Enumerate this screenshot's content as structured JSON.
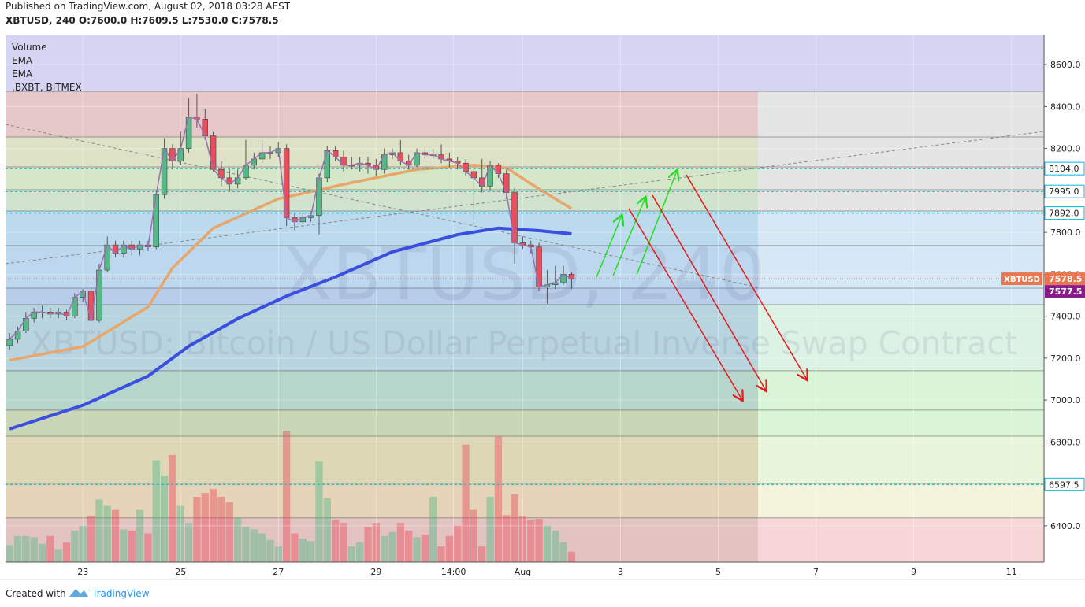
{
  "header": {
    "published": "Published on TradingView.com, August 02, 2018 03:28 AEST",
    "symbol": "XBTUSD, 240",
    "ohlc": [
      "O:7600.0",
      "H:7609.5",
      "L:7530.0",
      "C:7578.5"
    ]
  },
  "legend": [
    "Volume",
    "EMA",
    "EMA",
    ".BXBT, BITMEX"
  ],
  "watermark": {
    "symbol": "XBTUSD, 240",
    "description": "XBTUSD: Bitcoin / US Dollar Perpetual Inverse Swap Contract"
  },
  "footer": {
    "created": "Created with",
    "brand": "TradingView"
  },
  "chart_data": {
    "type": "candlestick",
    "xlim": [
      -38,
      472
    ],
    "xticks": [
      {
        "value": 0,
        "label": "23"
      },
      {
        "value": 48,
        "label": "25"
      },
      {
        "value": 96,
        "label": "27"
      },
      {
        "value": 144,
        "label": "29"
      },
      {
        "value": 182,
        "label": "14:00"
      },
      {
        "value": 216,
        "label": "Aug"
      },
      {
        "value": 264,
        "label": "3"
      },
      {
        "value": 312,
        "label": "5"
      },
      {
        "value": 360,
        "label": "7"
      },
      {
        "value": 408,
        "label": "9"
      },
      {
        "value": 456,
        "label": "11"
      }
    ],
    "ylim": [
      6227,
      8743
    ],
    "yticks": [
      {
        "value": 6400,
        "label": "6400.0"
      },
      {
        "value": 6600,
        "label": "6600.0"
      },
      {
        "value": 6800,
        "label": "6800.0"
      },
      {
        "value": 7000,
        "label": "7000.0"
      },
      {
        "value": 7200,
        "label": "7200.0"
      },
      {
        "value": 7400,
        "label": "7400.0"
      },
      {
        "value": 7600,
        "label": "7600.0"
      },
      {
        "value": 7800,
        "label": "7800.0"
      },
      {
        "value": 8000,
        "label": "8000.0"
      },
      {
        "value": 8200,
        "label": "8200.0"
      },
      {
        "value": 8400,
        "label": "8400.0"
      },
      {
        "value": 8600,
        "label": "8600.0"
      }
    ],
    "up_color": "#53b987",
    "down_color": "#eb4d5c",
    "close_line_color": "#9c6fb0",
    "x": [
      -36,
      -32,
      -28,
      -24,
      -20,
      -16,
      -12,
      -8,
      -4,
      0,
      4,
      8,
      12,
      16,
      20,
      24,
      28,
      32,
      36,
      40,
      44,
      48,
      52,
      56,
      60,
      64,
      68,
      72,
      76,
      80,
      84,
      88,
      92,
      96,
      100,
      104,
      108,
      112,
      116,
      120,
      124,
      128,
      132,
      136,
      140,
      144,
      148,
      152,
      156,
      160,
      164,
      168,
      172,
      176,
      180,
      184,
      188,
      192,
      196,
      200,
      204,
      208,
      212,
      216,
      220,
      224,
      228,
      232,
      236,
      240
    ],
    "open": [
      7260,
      7290,
      7330,
      7390,
      7420,
      7420,
      7410,
      7420,
      7400,
      7490,
      7520,
      7380,
      7620,
      7740,
      7700,
      7740,
      7720,
      7740,
      7730,
      7980,
      8200,
      8140,
      8200,
      8350,
      8340,
      8260,
      8100,
      8060,
      8030,
      8060,
      8120,
      8150,
      8180,
      8180,
      8200,
      7870,
      7850,
      7870,
      7880,
      8060,
      8190,
      8160,
      8120,
      8120,
      8130,
      8120,
      8100,
      8170,
      8180,
      8140,
      8120,
      8180,
      8170,
      8170,
      8150,
      8140,
      8130,
      8090,
      8060,
      8020,
      8120,
      8080,
      7990,
      7750,
      7740,
      7730,
      7540,
      7550,
      7560,
      7600
    ],
    "high": [
      7320,
      7350,
      7420,
      7440,
      7450,
      7440,
      7440,
      7430,
      7510,
      7530,
      7540,
      7650,
      7780,
      7760,
      7760,
      7760,
      7760,
      7760,
      8000,
      8250,
      8220,
      8280,
      8440,
      8460,
      8390,
      8280,
      8140,
      8100,
      8100,
      8240,
      8180,
      8240,
      8210,
      8230,
      8220,
      7890,
      7890,
      7900,
      8080,
      8210,
      8210,
      8190,
      8160,
      8160,
      8160,
      8150,
      8200,
      8200,
      8240,
      8170,
      8200,
      8210,
      8200,
      8220,
      8180,
      8160,
      8150,
      8110,
      8150,
      8140,
      8130,
      8100,
      8010,
      7780,
      7760,
      7750,
      7620,
      7640,
      7640,
      7609.5
    ],
    "low": [
      7240,
      7270,
      7320,
      7370,
      7390,
      7390,
      7390,
      7380,
      7390,
      7470,
      7330,
      7370,
      7610,
      7680,
      7680,
      7690,
      7690,
      7710,
      7720,
      7960,
      8100,
      8120,
      8180,
      8300,
      8240,
      8090,
      8020,
      8000,
      8010,
      8050,
      8100,
      8130,
      8150,
      8160,
      7830,
      7810,
      7840,
      7850,
      7790,
      8040,
      8140,
      8090,
      8100,
      8090,
      8080,
      8070,
      8080,
      8150,
      8120,
      8100,
      8110,
      8150,
      8150,
      8130,
      8110,
      8100,
      8070,
      7840,
      7990,
      8000,
      8060,
      7960,
      7650,
      7720,
      7700,
      7520,
      7460,
      7530,
      7550,
      7530
    ],
    "close": [
      7290,
      7330,
      7390,
      7420,
      7420,
      7410,
      7420,
      7400,
      7490,
      7520,
      7380,
      7620,
      7740,
      7700,
      7740,
      7720,
      7740,
      7730,
      7980,
      8200,
      8140,
      8200,
      8350,
      8340,
      8260,
      8100,
      8060,
      8030,
      8060,
      8120,
      8150,
      8180,
      8180,
      8200,
      7870,
      7850,
      7870,
      7880,
      8060,
      8190,
      8160,
      8120,
      8120,
      8130,
      8120,
      8100,
      8170,
      8180,
      8140,
      8120,
      8180,
      8170,
      8170,
      8150,
      8140,
      8130,
      8090,
      8060,
      8020,
      8120,
      8080,
      7990,
      7750,
      7740,
      7730,
      7540,
      7550,
      7560,
      7600,
      7578.5
    ],
    "volume": [
      13,
      20,
      20,
      19,
      14,
      20,
      10,
      15,
      24,
      28,
      35,
      48,
      43,
      40,
      25,
      24,
      40,
      22,
      78,
      66,
      82,
      43,
      30,
      50,
      53,
      56,
      50,
      46,
      34,
      27,
      25,
      22,
      17,
      12,
      100,
      22,
      18,
      16,
      77,
      49,
      32,
      30,
      12,
      15,
      27,
      30,
      20,
      23,
      30,
      24,
      19,
      21,
      50,
      12,
      20,
      28,
      90,
      40,
      12,
      50,
      96,
      36,
      52,
      35,
      32,
      33,
      28,
      24,
      15,
      8
    ],
    "lines": [
      {
        "color": "#e8a66b",
        "x": [
          -36,
          0,
          32,
          44,
          64,
          96,
          132,
          164,
          192,
          208,
          224,
          240
        ],
        "values": [
          7190,
          7255,
          7444,
          7630,
          7820,
          7960,
          8037,
          8100,
          8120,
          8108,
          8007,
          7913
        ]
      },
      {
        "color": "#3a4ee0",
        "x": [
          -36,
          0,
          32,
          52,
          76,
          100,
          124,
          152,
          184,
          204,
          224,
          240
        ],
        "values": [
          6862,
          6975,
          7114,
          7257,
          7388,
          7496,
          7587,
          7707,
          7789,
          7820,
          7808,
          7793
        ]
      }
    ],
    "zones": [
      {
        "from": 8743,
        "to": 8472,
        "color": "#d5d5f3",
        "color_right": "#d5d5f3"
      },
      {
        "from": 8472,
        "to": 8255,
        "color": "#e6c8ca",
        "color_right": "#e5e5e5"
      },
      {
        "from": 8255,
        "to": 8112,
        "color": "#dde2c7",
        "color_right": "#e5e5e5"
      },
      {
        "from": 8112,
        "to": 8003,
        "color": "#d5e6c9",
        "color_right": "#e5e5e5"
      },
      {
        "from": 8003,
        "to": 7902,
        "color": "#cfe3cf",
        "color_right": "#e5e5e5"
      },
      {
        "from": 7902,
        "to": 7737,
        "color": "#bcdaed",
        "color_right": "#d6e8f5"
      },
      {
        "from": 7737,
        "to": 7534,
        "color": "#bdd8ee",
        "color_right": "#d6e8f5"
      },
      {
        "from": 7534,
        "to": 7455,
        "color": "#b8cdea",
        "color_right": "#d6e8f5"
      },
      {
        "from": 7455,
        "to": 7140,
        "color": "#b8d4df",
        "color_right": "#dcf2e4"
      },
      {
        "from": 7140,
        "to": 6952,
        "color": "#b6d5cb",
        "color_right": "#d9f4d6"
      },
      {
        "from": 6952,
        "to": 6828,
        "color": "#c9d7b7",
        "color_right": "#d9f4d6"
      },
      {
        "from": 6828,
        "to": 6600,
        "color": "#ddd7b6",
        "color_right": "#e9f5da"
      },
      {
        "from": 6600,
        "to": 6438,
        "color": "#e5d4b8",
        "color_right": "#f4f4dc"
      },
      {
        "from": 6438,
        "to": 6227,
        "color": "#e2c3c1",
        "color_right": "#f6d6d6"
      }
    ],
    "price_labels": [
      {
        "value": 8104,
        "label": "8104.0"
      },
      {
        "value": 7995,
        "label": "7995.0"
      },
      {
        "value": 7892,
        "label": "7892.0"
      },
      {
        "value": 6597.5,
        "label": "6597.5"
      }
    ],
    "last_price": {
      "name": "XBTUSD",
      "value": 7578.5,
      "label": "7578.5",
      "color": "#e8774f"
    },
    "index_price": {
      "value": 7577.5,
      "label": "7577.5",
      "color": "#8b1a8b"
    }
  }
}
